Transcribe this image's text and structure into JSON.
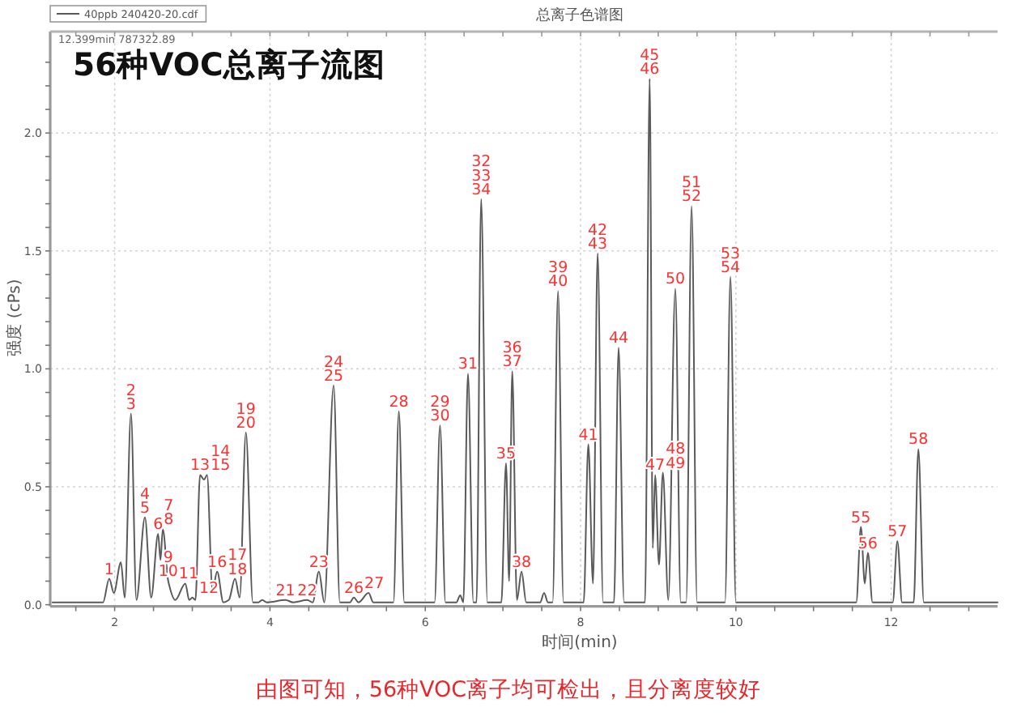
{
  "chart_data": {
    "type": "line",
    "title": "56种VOC总离子流图",
    "subtitle": "总离子色谱图",
    "xlabel": "时间(min)",
    "ylabel": "强度 (cPs)",
    "x": [
      1.2,
      1.85,
      1.93,
      1.99,
      2.08,
      2.13,
      2.21,
      2.28,
      2.39,
      2.47,
      2.56,
      2.59,
      2.62,
      2.69,
      2.78,
      2.91,
      2.96,
      3.0,
      3.04,
      3.1,
      3.15,
      3.19,
      3.26,
      3.32,
      3.4,
      3.47,
      3.55,
      3.61,
      3.69,
      3.78,
      3.85,
      3.9,
      3.96,
      4.2,
      4.3,
      4.48,
      4.55,
      4.63,
      4.7,
      4.82,
      4.9,
      5.03,
      5.08,
      5.14,
      5.27,
      5.33,
      5.59,
      5.66,
      5.73,
      6.12,
      6.19,
      6.26,
      6.4,
      6.45,
      6.49,
      6.55,
      6.62,
      6.66,
      6.72,
      6.8,
      6.98,
      7.04,
      7.08,
      7.12,
      7.18,
      7.24,
      7.3,
      7.48,
      7.53,
      7.58,
      7.64,
      7.71,
      7.78,
      8.04,
      8.1,
      8.16,
      8.22,
      8.29,
      8.43,
      8.49,
      8.56,
      8.83,
      8.89,
      8.93,
      8.96,
      9.01,
      9.06,
      9.13,
      9.22,
      9.29,
      9.36,
      9.43,
      9.5,
      9.86,
      9.93,
      10.0,
      11.55,
      11.61,
      11.66,
      11.7,
      11.76,
      12.02,
      12.08,
      12.14,
      12.29,
      12.35,
      12.42,
      13.37
    ],
    "series": [
      {
        "name": "40ppb 240420-20.cdf",
        "color": "#5a5a5a",
        "values": [
          0.01,
          0.01,
          0.11,
          0.05,
          0.18,
          0.03,
          0.81,
          0.02,
          0.37,
          0.03,
          0.3,
          0.19,
          0.32,
          0.1,
          0.02,
          0.09,
          0.02,
          0.03,
          0.02,
          0.55,
          0.53,
          0.55,
          0.06,
          0.14,
          0.01,
          0.02,
          0.11,
          0.03,
          0.73,
          0.01,
          0.01,
          0.02,
          0.01,
          0.02,
          0.01,
          0.02,
          0.01,
          0.14,
          0.01,
          0.93,
          0.01,
          0.01,
          0.03,
          0.01,
          0.05,
          0.01,
          0.01,
          0.82,
          0.01,
          0.01,
          0.76,
          0.01,
          0.01,
          0.04,
          0.01,
          0.98,
          0.01,
          0.01,
          1.72,
          0.01,
          0.01,
          0.6,
          0.1,
          0.99,
          0.02,
          0.14,
          0.01,
          0.01,
          0.05,
          0.01,
          0.01,
          1.33,
          0.01,
          0.01,
          0.68,
          0.09,
          1.49,
          0.01,
          0.01,
          1.09,
          0.01,
          0.01,
          2.23,
          0.24,
          0.55,
          0.17,
          0.56,
          0.02,
          1.34,
          0.01,
          0.01,
          1.69,
          0.01,
          0.01,
          1.39,
          0.01,
          0.01,
          0.33,
          0.09,
          0.22,
          0.01,
          0.01,
          0.27,
          0.01,
          0.01,
          0.66,
          0.01,
          0.01
        ]
      }
    ],
    "xlim": [
      1.17,
      13.37
    ],
    "xticks": [
      {
        "value": 1.5,
        "label": null
      },
      2,
      {
        "value": 2.5,
        "label": null
      },
      {
        "value": 3,
        "label": null
      },
      {
        "value": 3.5,
        "label": null
      },
      4,
      {
        "value": 4.5,
        "label": null
      },
      {
        "value": 5,
        "label": null
      },
      {
        "value": 5.5,
        "label": null
      },
      6,
      {
        "value": 6.5,
        "label": null
      },
      {
        "value": 7,
        "label": null
      },
      {
        "value": 7.5,
        "label": null
      },
      8,
      {
        "value": 8.5,
        "label": null
      },
      {
        "value": 9,
        "label": null
      },
      {
        "value": 9.5,
        "label": null
      },
      10,
      {
        "value": 10.5,
        "label": null
      },
      {
        "value": 11,
        "label": null
      },
      {
        "value": 11.5,
        "label": null
      },
      12,
      {
        "value": 12.5,
        "label": null
      },
      {
        "value": 13,
        "label": null
      }
    ],
    "ylim": [
      0,
      2.43
    ],
    "yticks": [
      {
        "value": 0,
        "label": "0.0"
      },
      {
        "value": 0.1,
        "label": null
      },
      {
        "value": 0.2,
        "label": null
      },
      {
        "value": 0.3,
        "label": null
      },
      {
        "value": 0.4,
        "label": null
      },
      0.5,
      {
        "value": 0.6,
        "label": null
      },
      {
        "value": 0.7,
        "label": null
      },
      {
        "value": 0.8,
        "label": null
      },
      {
        "value": 0.9,
        "label": null
      },
      {
        "value": 1,
        "label": "1.0"
      },
      {
        "value": 1.1,
        "label": null
      },
      {
        "value": 1.2,
        "label": null
      },
      {
        "value": 1.3,
        "label": null
      },
      {
        "value": 1.4,
        "label": null
      },
      1.5,
      {
        "value": 1.6,
        "label": null
      },
      {
        "value": 1.7,
        "label": null
      },
      {
        "value": 1.8,
        "label": null
      },
      {
        "value": 1.9,
        "label": null
      },
      {
        "value": 2,
        "label": "2.0"
      },
      {
        "value": 2.1,
        "label": null
      },
      {
        "value": 2.2,
        "label": null
      },
      {
        "value": 2.3,
        "label": null
      }
    ],
    "grid": true,
    "legend": "top left",
    "annotations": [
      "12.399min 787322.89",
      "由图可知，56种VOC离子均可检出，且分离度较好",
      {
        "text": "1",
        "x": 1.93,
        "y": 0.11
      },
      {
        "text": "2\n3",
        "x": 2.21,
        "y": 0.81
      },
      {
        "text": "4\n5",
        "x": 2.39,
        "y": 0.37
      },
      {
        "text": "6",
        "x": 2.56,
        "y": 0.3
      },
      {
        "text": "7\n8",
        "x": 2.62,
        "y": 0.32
      },
      {
        "text": "9\n10",
        "x": 2.69,
        "y": 0.1
      },
      {
        "text": "11",
        "x": 2.91,
        "y": 0.09
      },
      {
        "text": "12",
        "x": 3.0,
        "y": 0.03
      },
      {
        "text": "13",
        "x": 3.1,
        "y": 0.55
      },
      {
        "text": "14\n15",
        "x": 3.19,
        "y": 0.55
      },
      {
        "text": "16",
        "x": 3.32,
        "y": 0.14
      },
      {
        "text": "17\n18",
        "x": 3.55,
        "y": 0.11
      },
      {
        "text": "19\n20",
        "x": 3.69,
        "y": 0.73
      },
      {
        "text": "21",
        "x": 4.2,
        "y": 0.02
      },
      {
        "text": "22",
        "x": 4.48,
        "y": 0.02
      },
      {
        "text": "23",
        "x": 4.63,
        "y": 0.14
      },
      {
        "text": "24\n25",
        "x": 4.82,
        "y": 0.93
      },
      {
        "text": "26",
        "x": 5.08,
        "y": 0.03
      },
      {
        "text": "27",
        "x": 5.27,
        "y": 0.05
      },
      {
        "text": "28",
        "x": 5.66,
        "y": 0.82
      },
      {
        "text": "29\n30",
        "x": 6.19,
        "y": 0.76
      },
      {
        "text": "31",
        "x": 6.55,
        "y": 0.98
      },
      {
        "text": "32\n33\n34",
        "x": 6.72,
        "y": 1.72
      },
      {
        "text": "35",
        "x": 7.04,
        "y": 0.6
      },
      {
        "text": "36\n37",
        "x": 7.12,
        "y": 0.99
      },
      {
        "text": "38",
        "x": 7.24,
        "y": 0.14
      },
      {
        "text": "39\n40",
        "x": 7.71,
        "y": 1.33
      },
      {
        "text": "41",
        "x": 8.1,
        "y": 0.68
      },
      {
        "text": "42\n43",
        "x": 8.22,
        "y": 1.49
      },
      {
        "text": "44",
        "x": 8.49,
        "y": 1.09
      },
      {
        "text": "45\n46",
        "x": 8.89,
        "y": 2.23
      },
      {
        "text": "47",
        "x": 8.96,
        "y": 0.55
      },
      {
        "text": "48\n49",
        "x": 9.06,
        "y": 0.56
      },
      {
        "text": "50",
        "x": 9.22,
        "y": 1.34
      },
      {
        "text": "51\n52",
        "x": 9.43,
        "y": 1.69
      },
      {
        "text": "53\n54",
        "x": 9.93,
        "y": 1.39
      },
      {
        "text": "55",
        "x": 11.61,
        "y": 0.33
      },
      {
        "text": "56",
        "x": 11.7,
        "y": 0.22
      },
      {
        "text": "57",
        "x": 12.08,
        "y": 0.27
      },
      {
        "text": "58",
        "x": 12.35,
        "y": 0.66
      }
    ]
  }
}
